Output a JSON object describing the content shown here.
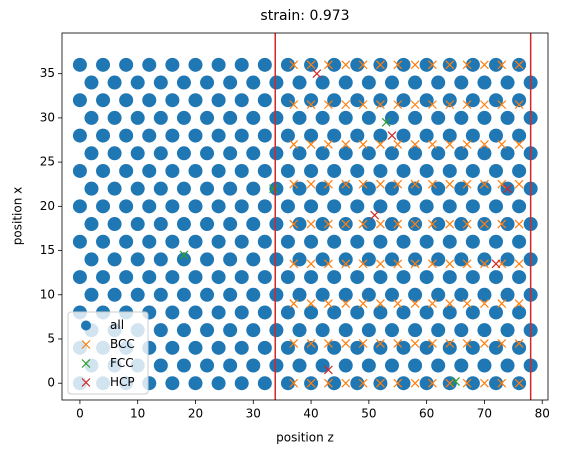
{
  "chart_data": {
    "type": "scatter",
    "title": "strain: 0.973",
    "xlabel": "position z",
    "ylabel": "position x",
    "xlim": [
      -3.1,
      81
    ],
    "ylim": [
      -1.9,
      39.6
    ],
    "xticks": [
      0,
      10,
      20,
      30,
      40,
      50,
      60,
      70,
      80
    ],
    "yticks": [
      0,
      5,
      10,
      15,
      20,
      25,
      30,
      35
    ],
    "legend": "lower left",
    "vlines": {
      "color": "#d62728",
      "values": [
        33.8,
        78
      ]
    },
    "series": [
      {
        "name": "all",
        "color": "#1f77b4",
        "marker": "o",
        "x": [
          0,
          4,
          8,
          12,
          16,
          20,
          24,
          28,
          32,
          36,
          40,
          44,
          48,
          52,
          56,
          60,
          64,
          68,
          72,
          76,
          2,
          6,
          10,
          14,
          18,
          22,
          26,
          30,
          34,
          38,
          42,
          46,
          50,
          54,
          58,
          62,
          66,
          70,
          74,
          78,
          0,
          4,
          8,
          12,
          16,
          20,
          24,
          28,
          32,
          36,
          40,
          44,
          48,
          52,
          56,
          60,
          64,
          68,
          72,
          76,
          2,
          6,
          10,
          14,
          18,
          22,
          26,
          30,
          34,
          38,
          42,
          46,
          50,
          54,
          58,
          62,
          66,
          70,
          74,
          78,
          0,
          4,
          8,
          12,
          16,
          20,
          24,
          28,
          32,
          36,
          40,
          44,
          48,
          52,
          56,
          60,
          64,
          68,
          72,
          76,
          2,
          6,
          10,
          14,
          18,
          22,
          26,
          30,
          34,
          38,
          42,
          46,
          50,
          54,
          58,
          62,
          66,
          70,
          74,
          78,
          0,
          4,
          8,
          12,
          16,
          20,
          24,
          28,
          32,
          36,
          40,
          44,
          48,
          52,
          56,
          60,
          64,
          68,
          72,
          76,
          2,
          6,
          10,
          14,
          18,
          22,
          26,
          30,
          34,
          38,
          42,
          46,
          50,
          54,
          58,
          62,
          66,
          70,
          74,
          78,
          0,
          4,
          8,
          12,
          16,
          20,
          24,
          28,
          32,
          36,
          40,
          44,
          48,
          52,
          56,
          60,
          64,
          68,
          72,
          76,
          2,
          6,
          10,
          14,
          18,
          22,
          26,
          30,
          34,
          38,
          42,
          46,
          50,
          54,
          58,
          62,
          66,
          70,
          74,
          78,
          0,
          4,
          8,
          12,
          16,
          20,
          24,
          28,
          32,
          36,
          40,
          44,
          48,
          52,
          56,
          60,
          64,
          68,
          72,
          76,
          2,
          6,
          10,
          14,
          18,
          22,
          26,
          30,
          34,
          38,
          42,
          46,
          50,
          54,
          58,
          62,
          66,
          70,
          74,
          78,
          0,
          4,
          8,
          12,
          16,
          20,
          24,
          28,
          32,
          36,
          40,
          44,
          48,
          52,
          56,
          60,
          64,
          68,
          72,
          76,
          2,
          6,
          10,
          14,
          18,
          22,
          26,
          30,
          34,
          38,
          42,
          46,
          50,
          54,
          58,
          62,
          66,
          70,
          74,
          78,
          0,
          4,
          8,
          12,
          16,
          20,
          24,
          28,
          32,
          36,
          40,
          44,
          48,
          52,
          56,
          60,
          64,
          68,
          72,
          76,
          2,
          6,
          10,
          14,
          18,
          22,
          26,
          30,
          34,
          38,
          42,
          46,
          50,
          54,
          58,
          62,
          66,
          70,
          74,
          78,
          0,
          4,
          8,
          12,
          16,
          20,
          24,
          28,
          32,
          36,
          40,
          44,
          48,
          52,
          56,
          60,
          64,
          68,
          72,
          76,
          2,
          6,
          10,
          14,
          18,
          22,
          26,
          30,
          34,
          38,
          42,
          46,
          50,
          54,
          58,
          62,
          66,
          70,
          74,
          78,
          0,
          4,
          8,
          12,
          16,
          20,
          24,
          28,
          32,
          36,
          40,
          44,
          48,
          52,
          56,
          60,
          64,
          68,
          72,
          76
        ],
        "y": [
          0,
          0,
          0,
          0,
          0,
          0,
          0,
          0,
          0,
          0,
          0,
          0,
          0,
          0,
          0,
          0,
          0,
          0,
          0,
          0,
          2,
          2,
          2,
          2,
          2,
          2,
          2,
          2,
          2,
          2,
          2,
          2,
          2,
          2,
          2,
          2,
          2,
          2,
          2,
          2,
          4,
          4,
          4,
          4,
          4,
          4,
          4,
          4,
          4,
          4,
          4,
          4,
          4,
          4,
          4,
          4,
          4,
          4,
          4,
          4,
          6,
          6,
          6,
          6,
          6,
          6,
          6,
          6,
          6,
          6,
          6,
          6,
          6,
          6,
          6,
          6,
          6,
          6,
          6,
          6,
          8,
          8,
          8,
          8,
          8,
          8,
          8,
          8,
          8,
          8,
          8,
          8,
          8,
          8,
          8,
          8,
          8,
          8,
          8,
          8,
          10,
          10,
          10,
          10,
          10,
          10,
          10,
          10,
          10,
          10,
          10,
          10,
          10,
          10,
          10,
          10,
          10,
          10,
          10,
          10,
          12,
          12,
          12,
          12,
          12,
          12,
          12,
          12,
          12,
          12,
          12,
          12,
          12,
          12,
          12,
          12,
          12,
          12,
          12,
          12,
          14,
          14,
          14,
          14,
          14,
          14,
          14,
          14,
          14,
          14,
          14,
          14,
          14,
          14,
          14,
          14,
          14,
          14,
          14,
          14,
          16,
          16,
          16,
          16,
          16,
          16,
          16,
          16,
          16,
          16,
          16,
          16,
          16,
          16,
          16,
          16,
          16,
          16,
          16,
          16,
          18,
          18,
          18,
          18,
          18,
          18,
          18,
          18,
          18,
          18,
          18,
          18,
          18,
          18,
          18,
          18,
          18,
          18,
          18,
          18,
          20,
          20,
          20,
          20,
          20,
          20,
          20,
          20,
          20,
          20,
          20,
          20,
          20,
          20,
          20,
          20,
          20,
          20,
          20,
          20,
          22,
          22,
          22,
          22,
          22,
          22,
          22,
          22,
          22,
          22,
          22,
          22,
          22,
          22,
          22,
          22,
          22,
          22,
          22,
          22,
          24,
          24,
          24,
          24,
          24,
          24,
          24,
          24,
          24,
          24,
          24,
          24,
          24,
          24,
          24,
          24,
          24,
          24,
          24,
          24,
          26,
          26,
          26,
          26,
          26,
          26,
          26,
          26,
          26,
          26,
          26,
          26,
          26,
          26,
          26,
          26,
          26,
          26,
          26,
          26,
          28,
          28,
          28,
          28,
          28,
          28,
          28,
          28,
          28,
          28,
          28,
          28,
          28,
          28,
          28,
          28,
          28,
          28,
          28,
          28,
          30,
          30,
          30,
          30,
          30,
          30,
          30,
          30,
          30,
          30,
          30,
          30,
          30,
          30,
          30,
          30,
          30,
          30,
          30,
          30,
          32,
          32,
          32,
          32,
          32,
          32,
          32,
          32,
          32,
          32,
          32,
          32,
          32,
          32,
          32,
          32,
          32,
          32,
          32,
          32,
          34,
          34,
          34,
          34,
          34,
          34,
          34,
          34,
          34,
          34,
          34,
          34,
          34,
          34,
          34,
          34,
          34,
          34,
          34,
          34,
          36,
          36,
          36,
          36,
          36,
          36,
          36,
          36,
          36,
          36,
          36,
          36,
          36,
          36,
          36,
          36,
          36,
          36,
          36,
          36
        ]
      },
      {
        "name": "BCC",
        "color": "#ff7f0e",
        "marker": "x",
        "x": [
          37,
          40,
          43,
          46,
          49,
          52,
          55,
          58,
          61,
          64,
          67,
          70,
          73,
          76,
          37,
          40,
          43,
          46,
          49,
          52,
          55,
          58,
          61,
          64,
          67,
          70,
          73,
          76,
          37,
          40,
          43,
          46,
          49,
          52,
          55,
          58,
          61,
          64,
          67,
          70,
          73,
          76,
          37,
          40,
          43,
          46,
          49,
          52,
          55,
          58,
          61,
          64,
          67,
          70,
          73,
          76,
          37,
          40,
          43,
          46,
          49,
          52,
          55,
          58,
          61,
          64,
          67,
          70,
          73,
          76,
          37,
          40,
          43,
          46,
          49,
          52,
          55,
          58,
          61,
          64,
          67,
          70,
          73,
          76,
          37,
          40,
          43,
          46,
          49,
          52,
          55,
          58,
          61,
          64,
          67,
          70,
          73,
          76,
          37,
          40,
          43,
          46,
          49,
          52,
          55,
          58,
          61,
          64,
          67,
          70,
          73,
          76,
          37,
          40,
          43,
          46,
          49,
          52,
          55,
          58,
          61,
          64,
          67,
          70,
          73,
          76
        ],
        "y": [
          0,
          0,
          0,
          0,
          0,
          0,
          0,
          0,
          0,
          0,
          0,
          0,
          0,
          0,
          4.5,
          4.5,
          4.5,
          4.5,
          4.5,
          4.5,
          4.5,
          4.5,
          4.5,
          4.5,
          4.5,
          4.5,
          4.5,
          4.5,
          9,
          9,
          9,
          9,
          9,
          9,
          9,
          9,
          9,
          9,
          9,
          9,
          9,
          9,
          13.5,
          13.5,
          13.5,
          13.5,
          13.5,
          13.5,
          13.5,
          13.5,
          13.5,
          13.5,
          13.5,
          13.5,
          13.5,
          13.5,
          18,
          18,
          18,
          18,
          18,
          18,
          18,
          18,
          18,
          18,
          18,
          18,
          18,
          18,
          22.5,
          22.5,
          22.5,
          22.5,
          22.5,
          22.5,
          22.5,
          22.5,
          22.5,
          22.5,
          22.5,
          22.5,
          22.5,
          22.5,
          27,
          27,
          27,
          27,
          27,
          27,
          27,
          27,
          27,
          27,
          27,
          27,
          27,
          27,
          31.5,
          31.5,
          31.5,
          31.5,
          31.5,
          31.5,
          31.5,
          31.5,
          31.5,
          31.5,
          31.5,
          31.5,
          31.5,
          31.5,
          36,
          36,
          36,
          36,
          36,
          36,
          36,
          36,
          36,
          36,
          36,
          36,
          36,
          36
        ]
      },
      {
        "name": "FCC",
        "color": "#2ca02c",
        "marker": "x",
        "x": [
          18,
          53,
          65,
          33.5
        ],
        "y": [
          14.5,
          29.5,
          0.2,
          22
        ]
      },
      {
        "name": "HCP",
        "color": "#d62728",
        "marker": "x",
        "x": [
          41,
          54,
          43,
          72,
          51,
          74
        ],
        "y": [
          35,
          28,
          1.5,
          13.5,
          19,
          22
        ]
      }
    ]
  }
}
